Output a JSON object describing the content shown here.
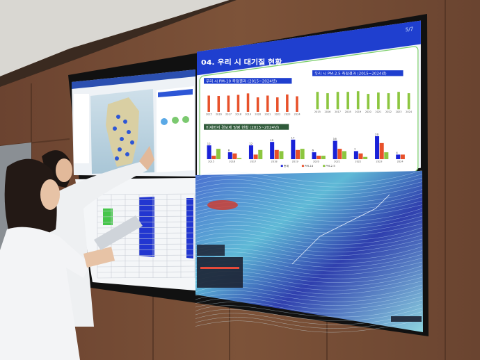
{
  "screen": {
    "page_indicator": "5/7",
    "slide_title": "04. 우리 시 대기질 현황"
  },
  "colors": {
    "slide_blue": "#1f3fcf",
    "pm10_orange": "#e8512a",
    "pm25_green": "#8cc63f",
    "total_blue": "#1a22d8",
    "frame_green": "#7ccf6a",
    "wood": "#7a4e33"
  },
  "chart_data": [
    {
      "type": "bar",
      "title": "우리 시 PM-10 측정결과 (2015~2024년)",
      "categories": [
        "2015",
        "2016",
        "2017",
        "2018",
        "2019",
        "2020",
        "2021",
        "2022",
        "2023",
        "2024"
      ],
      "values": [
        45,
        44,
        45,
        47,
        51,
        40,
        45,
        40,
        48,
        43
      ],
      "ylim": [
        0,
        60
      ],
      "grid": false
    },
    {
      "type": "bar",
      "title": "우리 시 PM-2.5 측정결과 (2015~2024년)",
      "categories": [
        "2015",
        "2016",
        "2017",
        "2018",
        "2019",
        "2020",
        "2021",
        "2022",
        "2023",
        "2024"
      ],
      "values": [
        26,
        24,
        26,
        26,
        27,
        23,
        25,
        24,
        26,
        24
      ],
      "ylim": [
        0,
        40
      ],
      "grid": false
    },
    {
      "type": "bar",
      "title": "미세먼지 경보제 발령 현황 (2015~2024년)",
      "categories": [
        "2015",
        "2016",
        "2017",
        "2018",
        "2019",
        "2020",
        "2021",
        "2022",
        "2023",
        "2024"
      ],
      "series": [
        {
          "name": "총계",
          "values": [
            12,
            6,
            12,
            15,
            17,
            6,
            16,
            7,
            20,
            4
          ]
        },
        {
          "name": "PM-10",
          "values": [
            3,
            5,
            4,
            8,
            8,
            3,
            9,
            5,
            14,
            4
          ]
        },
        {
          "name": "PM-2.5",
          "values": [
            9,
            1,
            8,
            7,
            9,
            3,
            7,
            2,
            6,
            0
          ]
        }
      ],
      "ylim": [
        0,
        20
      ],
      "legend": "bottom",
      "grid": false
    }
  ]
}
